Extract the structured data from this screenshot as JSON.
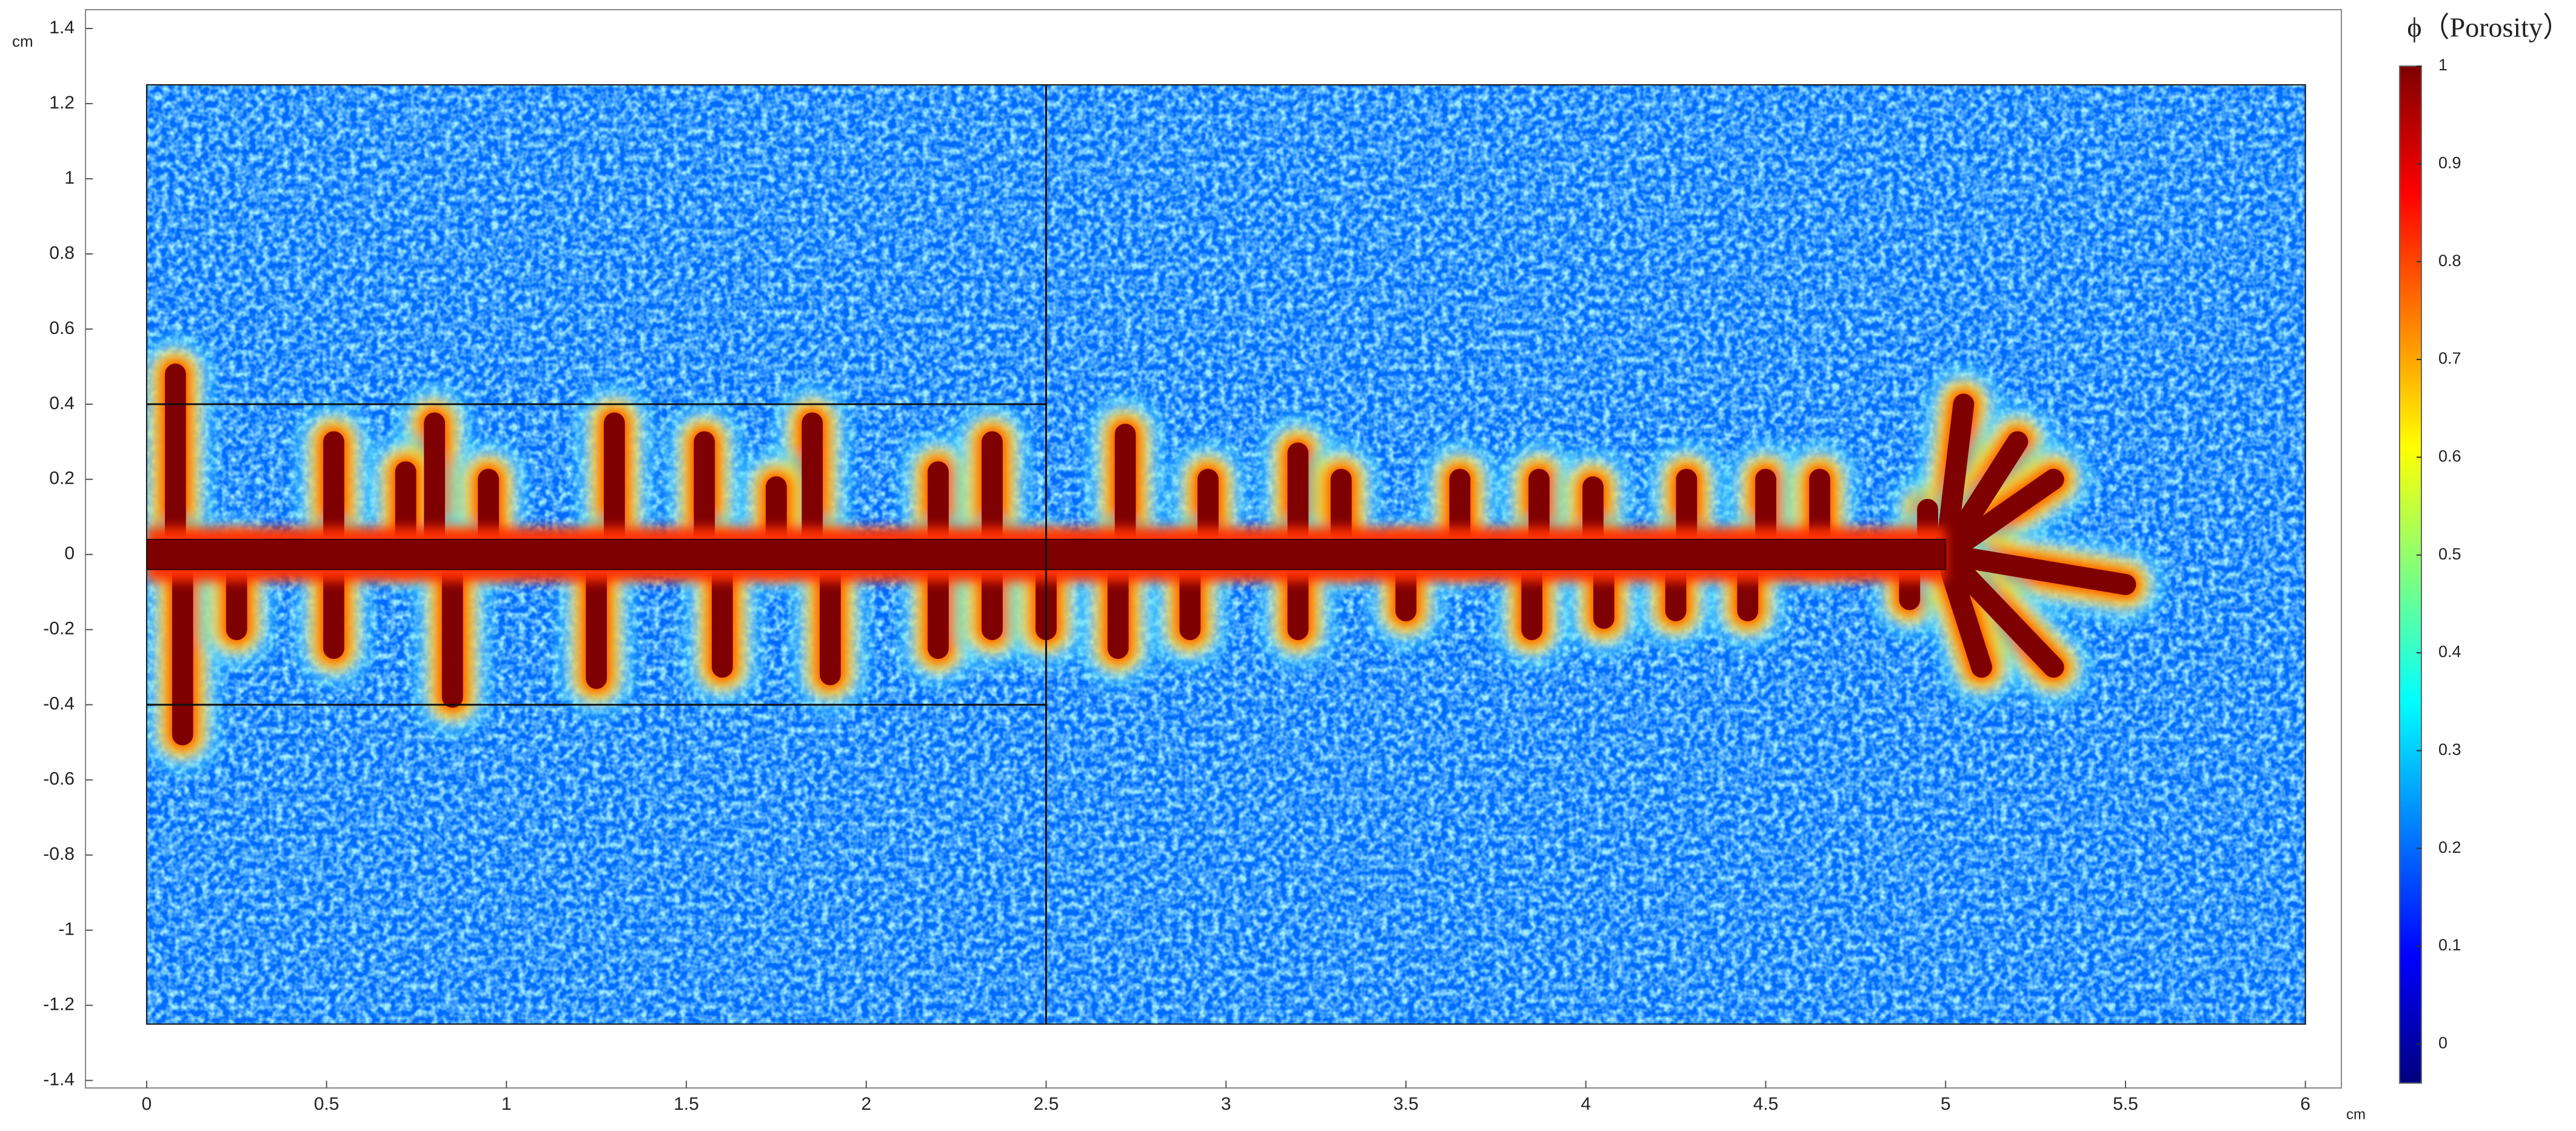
{
  "chart_data": {
    "type": "field",
    "colorbar_title": "ϕ（Porosity）",
    "y_unit": "cm",
    "x_unit": "cm",
    "xlim": [
      -0.17,
      6.1
    ],
    "ylim": [
      -1.42,
      1.45
    ],
    "xticks": [
      0,
      0.5,
      1,
      1.5,
      2,
      2.5,
      3,
      3.5,
      4,
      4.5,
      5,
      5.5,
      6
    ],
    "yticks": [
      -1.4,
      -1.2,
      -1,
      -0.8,
      -0.6,
      -0.4,
      -0.2,
      0,
      0.2,
      0.4,
      0.6,
      0.8,
      1,
      1.2,
      1.4
    ],
    "clim": [
      -0.04,
      1
    ],
    "cticks": [
      0,
      0.1,
      0.2,
      0.3,
      0.4,
      0.5,
      0.6,
      0.7,
      0.8,
      0.9,
      1
    ],
    "colormap": [
      "#00007f",
      "#0000ff",
      "#007fff",
      "#00ffff",
      "#7fff7f",
      "#ffff00",
      "#ff7f00",
      "#ff0000",
      "#7f0000"
    ],
    "domain": {
      "x": [
        0,
        6
      ],
      "y": [
        -1.25,
        1.25
      ]
    },
    "inner_lines": [
      {
        "x": [
          2.5,
          2.5
        ],
        "y": [
          -1.25,
          1.25
        ]
      },
      {
        "x": [
          0,
          2.5
        ],
        "y": [
          0.4,
          0.4
        ]
      },
      {
        "x": [
          0,
          2.5
        ],
        "y": [
          -0.4,
          -0.4
        ]
      }
    ],
    "background_value": 0.2,
    "channel": {
      "x": [
        0,
        5
      ],
      "halfwidth": 0.04,
      "value": 1
    },
    "branches": [
      {
        "x": 0.08,
        "y": 0.48
      },
      {
        "x": 0.52,
        "y": 0.3
      },
      {
        "x": 0.8,
        "y": 0.35
      },
      {
        "x": 0.72,
        "y": 0.22
      },
      {
        "x": 0.95,
        "y": 0.2
      },
      {
        "x": 1.3,
        "y": 0.35
      },
      {
        "x": 1.55,
        "y": 0.3
      },
      {
        "x": 1.85,
        "y": 0.35
      },
      {
        "x": 1.75,
        "y": 0.18
      },
      {
        "x": 2.2,
        "y": 0.22
      },
      {
        "x": 2.35,
        "y": 0.3
      },
      {
        "x": 2.72,
        "y": 0.32
      },
      {
        "x": 2.95,
        "y": 0.2
      },
      {
        "x": 3.2,
        "y": 0.27
      },
      {
        "x": 3.32,
        "y": 0.2
      },
      {
        "x": 3.65,
        "y": 0.2
      },
      {
        "x": 3.87,
        "y": 0.2
      },
      {
        "x": 4.02,
        "y": 0.18
      },
      {
        "x": 4.28,
        "y": 0.2
      },
      {
        "x": 4.5,
        "y": 0.2
      },
      {
        "x": 4.65,
        "y": 0.2
      },
      {
        "x": 4.95,
        "y": 0.12
      },
      {
        "x": 0.1,
        "y": -0.48
      },
      {
        "x": 0.25,
        "y": -0.2
      },
      {
        "x": 0.52,
        "y": -0.25
      },
      {
        "x": 0.85,
        "y": -0.38
      },
      {
        "x": 1.25,
        "y": -0.33
      },
      {
        "x": 1.6,
        "y": -0.3
      },
      {
        "x": 1.9,
        "y": -0.32
      },
      {
        "x": 2.2,
        "y": -0.25
      },
      {
        "x": 2.35,
        "y": -0.2
      },
      {
        "x": 2.5,
        "y": -0.2
      },
      {
        "x": 2.7,
        "y": -0.25
      },
      {
        "x": 2.9,
        "y": -0.2
      },
      {
        "x": 3.2,
        "y": -0.2
      },
      {
        "x": 3.5,
        "y": -0.15
      },
      {
        "x": 3.85,
        "y": -0.2
      },
      {
        "x": 4.05,
        "y": -0.17
      },
      {
        "x": 4.25,
        "y": -0.15
      },
      {
        "x": 4.45,
        "y": -0.15
      },
      {
        "x": 4.9,
        "y": -0.12
      },
      {
        "x": 5.05,
        "y": 0.4
      },
      {
        "x": 5.2,
        "y": 0.3
      },
      {
        "x": 5.3,
        "y": 0.2
      },
      {
        "x": 5.5,
        "y": -0.08
      },
      {
        "x": 5.3,
        "y": -0.3
      },
      {
        "x": 5.1,
        "y": -0.3
      }
    ]
  }
}
